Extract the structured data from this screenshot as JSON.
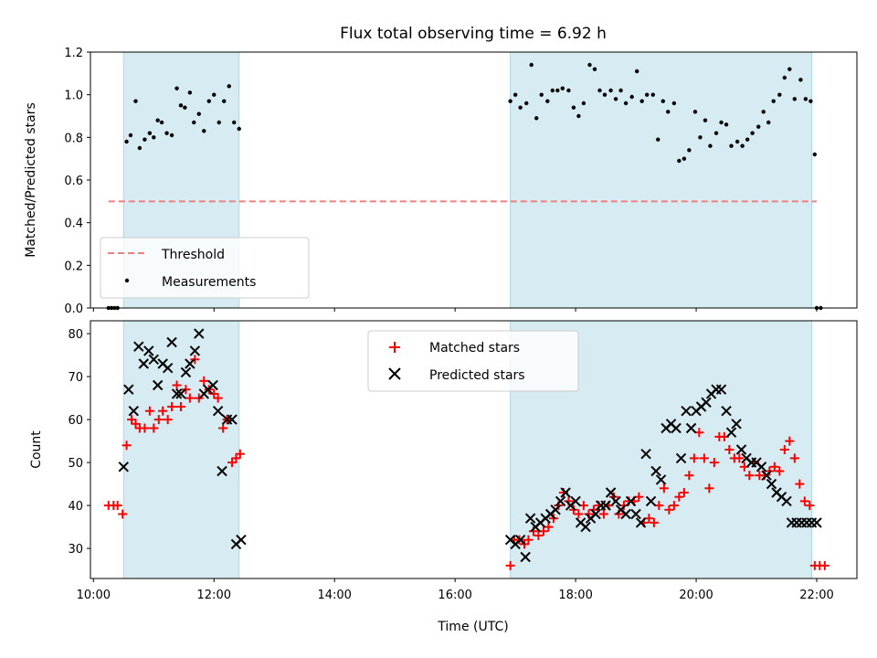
{
  "chart_data": {
    "type": "scatter",
    "title": "Flux total observing time = 6.92 h",
    "xlabel": "Time (UTC)",
    "x_ticks": [
      "10:00",
      "12:00",
      "14:00",
      "16:00",
      "18:00",
      "20:00",
      "22:00"
    ],
    "x_range": [
      "09:57",
      "22:40"
    ],
    "shaded_intervals": [
      [
        "10:30",
        "12:25"
      ],
      [
        "16:55",
        "21:55"
      ]
    ],
    "shade_color": "#add8e6",
    "panels": [
      {
        "ylabel": "Matched/Predicted stars",
        "ylim": [
          0,
          1.2
        ],
        "y_ticks": [
          "0.0",
          "0.2",
          "0.4",
          "0.6",
          "0.8",
          "1.0",
          "1.2"
        ],
        "legend_position": "lower-left",
        "legend": [
          "Threshold",
          "Measurements"
        ],
        "threshold": {
          "name": "Threshold",
          "value": 0.5,
          "x_range": [
            "10:15",
            "22:00"
          ],
          "color": "#f08080"
        },
        "series": [
          {
            "name": "Measurements",
            "marker": "dot",
            "color": "#000000",
            "x": [
              "10:15",
              "10:18",
              "10:21",
              "10:24",
              "10:33",
              "10:37",
              "10:42",
              "10:46",
              "10:51",
              "10:56",
              "11:00",
              "11:04",
              "11:08",
              "11:13",
              "11:18",
              "11:23",
              "11:27",
              "11:31",
              "11:36",
              "11:40",
              "11:45",
              "11:50",
              "11:55",
              "12:00",
              "12:05",
              "12:10",
              "12:15",
              "12:20",
              "12:25",
              "16:55",
              "17:00",
              "17:05",
              "17:11",
              "17:16",
              "17:21",
              "17:26",
              "17:32",
              "17:37",
              "17:42",
              "17:47",
              "17:53",
              "17:58",
              "18:03",
              "18:08",
              "18:14",
              "18:19",
              "18:24",
              "18:29",
              "18:35",
              "18:40",
              "18:45",
              "18:50",
              "18:56",
              "19:01",
              "19:06",
              "19:11",
              "19:17",
              "19:22",
              "19:27",
              "19:32",
              "19:38",
              "19:43",
              "19:48",
              "19:53",
              "19:59",
              "20:04",
              "20:09",
              "20:14",
              "20:20",
              "20:25",
              "20:30",
              "20:35",
              "20:41",
              "20:46",
              "20:51",
              "20:56",
              "21:02",
              "21:07",
              "21:12",
              "21:17",
              "21:23",
              "21:28",
              "21:33",
              "21:38",
              "21:44",
              "21:49",
              "21:54",
              "21:58",
              "22:00",
              "22:04"
            ],
            "y": [
              0,
              0,
              0,
              0,
              0.78,
              0.81,
              0.97,
              0.75,
              0.79,
              0.82,
              0.8,
              0.88,
              0.87,
              0.82,
              0.81,
              1.03,
              0.95,
              0.94,
              1.01,
              0.87,
              0.91,
              0.83,
              0.97,
              1.0,
              0.87,
              0.97,
              1.04,
              0.87,
              0.84,
              0.97,
              1.0,
              0.94,
              0.96,
              1.14,
              0.89,
              1.0,
              0.97,
              1.02,
              1.02,
              1.03,
              1.02,
              0.94,
              0.9,
              0.96,
              1.14,
              1.12,
              1.02,
              1.0,
              1.02,
              0.98,
              1.02,
              0.96,
              0.99,
              1.11,
              0.97,
              1.0,
              1.0,
              0.79,
              0.97,
              0.92,
              0.96,
              0.69,
              0.7,
              0.74,
              0.92,
              0.8,
              0.88,
              0.76,
              0.82,
              0.87,
              0.86,
              0.76,
              0.78,
              0.76,
              0.79,
              0.82,
              0.85,
              0.92,
              0.87,
              0.97,
              1.0,
              1.08,
              1.12,
              0.98,
              1.07,
              0.98,
              0.97,
              0.72,
              0,
              0
            ]
          }
        ]
      },
      {
        "ylabel": "Count",
        "ylim": [
          23,
          83
        ],
        "y_ticks": [
          "30",
          "40",
          "50",
          "60",
          "70",
          "80"
        ],
        "legend_position": "upper-center",
        "legend": [
          "Matched stars",
          "Predicted stars"
        ],
        "series": [
          {
            "name": "Matched stars",
            "marker": "plus",
            "color": "#ff0000",
            "x": [
              "10:15",
              "10:20",
              "10:24",
              "10:29",
              "10:33",
              "10:38",
              "10:42",
              "10:46",
              "10:51",
              "10:56",
              "11:00",
              "11:05",
              "11:09",
              "11:14",
              "11:18",
              "11:23",
              "11:27",
              "11:32",
              "11:36",
              "11:41",
              "11:45",
              "11:50",
              "11:55",
              "12:00",
              "12:04",
              "12:09",
              "12:13",
              "12:18",
              "12:22",
              "12:26",
              "16:55",
              "16:59",
              "17:04",
              "17:09",
              "17:13",
              "17:18",
              "17:23",
              "17:28",
              "17:33",
              "17:38",
              "17:43",
              "17:48",
              "17:53",
              "17:58",
              "18:03",
              "18:08",
              "18:13",
              "18:18",
              "18:23",
              "18:28",
              "18:33",
              "18:38",
              "18:43",
              "18:48",
              "18:53",
              "18:58",
              "19:03",
              "19:08",
              "19:13",
              "19:18",
              "19:23",
              "19:28",
              "19:33",
              "19:38",
              "19:43",
              "19:48",
              "19:53",
              "19:58",
              "20:03",
              "20:08",
              "20:13",
              "20:18",
              "20:23",
              "20:28",
              "20:33",
              "20:38",
              "20:43",
              "20:48",
              "20:53",
              "20:58",
              "21:03",
              "21:08",
              "21:13",
              "21:18",
              "21:23",
              "21:28",
              "21:33",
              "21:38",
              "21:43",
              "21:48",
              "21:53",
              "21:58",
              "22:03",
              "22:08"
            ],
            "y": [
              40,
              40,
              40,
              38,
              54,
              60,
              59,
              58,
              58,
              62,
              58,
              60,
              62,
              60,
              63,
              68,
              63,
              67,
              65,
              74,
              65,
              69,
              67,
              66,
              65,
              58,
              60,
              50,
              51,
              52,
              26,
              32,
              32,
              31,
              32,
              34,
              33,
              34,
              35,
              37,
              40,
              43,
              41,
              39,
              38,
              40,
              38,
              39,
              40,
              38,
              40,
              42,
              38,
              40,
              41,
              41,
              42,
              36,
              37,
              36,
              40,
              44,
              39,
              40,
              42,
              43,
              47,
              51,
              57,
              51,
              44,
              50,
              56,
              56,
              53,
              51,
              51,
              49,
              47,
              50,
              47,
              47,
              48,
              49,
              48,
              53,
              55,
              51,
              45,
              41,
              40,
              26,
              26,
              26
            ]
          },
          {
            "name": "Predicted stars",
            "marker": "x",
            "color": "#000000",
            "x": [
              "10:30",
              "10:35",
              "10:40",
              "10:45",
              "10:50",
              "10:55",
              "11:00",
              "11:04",
              "11:09",
              "11:14",
              "11:18",
              "11:23",
              "11:27",
              "11:32",
              "11:36",
              "11:41",
              "11:45",
              "11:50",
              "11:54",
              "11:59",
              "12:04",
              "12:08",
              "12:13",
              "12:18",
              "12:22",
              "12:27",
              "16:55",
              "17:00",
              "17:05",
              "17:10",
              "17:15",
              "17:20",
              "17:25",
              "17:30",
              "17:35",
              "17:40",
              "17:45",
              "17:50",
              "17:55",
              "18:00",
              "18:05",
              "18:10",
              "18:15",
              "18:20",
              "18:25",
              "18:30",
              "18:35",
              "18:40",
              "18:45",
              "18:50",
              "18:55",
              "19:00",
              "19:05",
              "19:10",
              "19:15",
              "19:20",
              "19:25",
              "19:30",
              "19:35",
              "19:40",
              "19:45",
              "19:50",
              "19:55",
              "20:00",
              "20:05",
              "20:10",
              "20:15",
              "20:20",
              "20:25",
              "20:30",
              "20:35",
              "20:40",
              "20:45",
              "20:50",
              "20:55",
              "21:00",
              "21:05",
              "21:10",
              "21:15",
              "21:20",
              "21:25",
              "21:30",
              "21:35",
              "21:40",
              "21:45",
              "21:50",
              "21:55",
              "22:00"
            ],
            "y": [
              49,
              67,
              62,
              77,
              73,
              76,
              74,
              68,
              73,
              72,
              78,
              66,
              66,
              71,
              73,
              76,
              80,
              66,
              67,
              68,
              62,
              48,
              60,
              60,
              31,
              32,
              32,
              31,
              32,
              28,
              37,
              35,
              36,
              37,
              38,
              39,
              41,
              43,
              40,
              41,
              36,
              35,
              37,
              38,
              40,
              40,
              43,
              41,
              39,
              38,
              41,
              38,
              36,
              52,
              41,
              48,
              46,
              58,
              59,
              58,
              51,
              62,
              58,
              62,
              63,
              64,
              66,
              67,
              67,
              62,
              57,
              59,
              53,
              51,
              50,
              50,
              49,
              47,
              45,
              43,
              42,
              41,
              36,
              36,
              36,
              36,
              36,
              36
            ]
          }
        ]
      }
    ]
  }
}
